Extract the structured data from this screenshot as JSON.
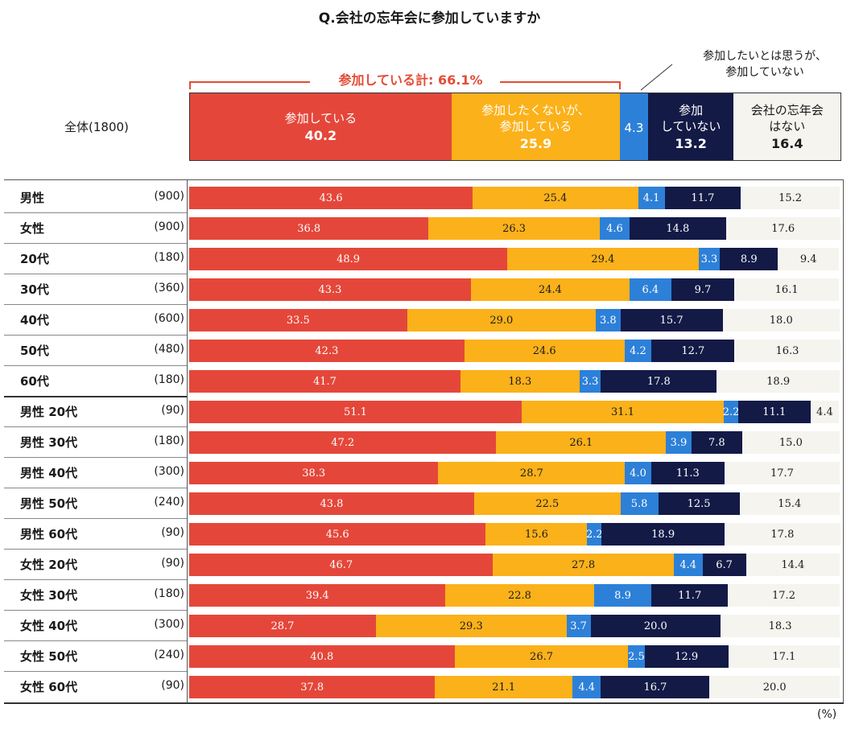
{
  "title": "Q.会社の忘年会に参加していますか",
  "unit_note": "(%)",
  "colors": {
    "attend": "#e4473a",
    "reluctant": "#fbb11a",
    "want_but_not": "#2d80d8",
    "not_attend": "#131a46",
    "no_party": "#f5f4ef",
    "bracket": "#e24d35"
  },
  "bracket_label": "参加している計: 66.1%",
  "annotation": "参加したいとは思うが、\n参加していない",
  "total": {
    "label": "全体(1800)",
    "segments": [
      {
        "label": "参加している",
        "value": 40.2
      },
      {
        "label": "参加したくないが、\n参加している",
        "value": 25.9
      },
      {
        "label": "",
        "value": 4.3
      },
      {
        "label": "参加\nしていない",
        "value": 13.2
      },
      {
        "label": "会社の忘年会\nはない",
        "value": 16.4
      }
    ]
  },
  "chart_data": {
    "type": "bar",
    "orientation": "horizontal-stacked-100",
    "series_names": [
      "参加している",
      "参加したくないが、参加している",
      "参加したいとは思うが、参加していない",
      "参加していない",
      "会社の忘年会はない"
    ],
    "rows": [
      {
        "label": "男性",
        "n": "(900)",
        "values": [
          43.6,
          25.4,
          4.1,
          11.7,
          15.2
        ]
      },
      {
        "label": "女性",
        "n": "(900)",
        "values": [
          36.8,
          26.3,
          4.6,
          14.8,
          17.6
        ]
      },
      {
        "label": "20代",
        "n": "(180)",
        "values": [
          48.9,
          29.4,
          3.3,
          8.9,
          9.4
        ]
      },
      {
        "label": "30代",
        "n": "(360)",
        "values": [
          43.3,
          24.4,
          6.4,
          9.7,
          16.1
        ]
      },
      {
        "label": "40代",
        "n": "(600)",
        "values": [
          33.5,
          29.0,
          3.8,
          15.7,
          18.0
        ]
      },
      {
        "label": "50代",
        "n": "(480)",
        "values": [
          42.3,
          24.6,
          4.2,
          12.7,
          16.3
        ]
      },
      {
        "label": "60代",
        "n": "(180)",
        "values": [
          41.7,
          18.3,
          3.3,
          17.8,
          18.9
        ]
      },
      {
        "label": "男性 20代",
        "n": "(90)",
        "values": [
          51.1,
          31.1,
          2.2,
          11.1,
          4.4
        ]
      },
      {
        "label": "男性 30代",
        "n": "(180)",
        "values": [
          47.2,
          26.1,
          3.9,
          7.8,
          15.0
        ]
      },
      {
        "label": "男性 40代",
        "n": "(300)",
        "values": [
          38.3,
          28.7,
          4.0,
          11.3,
          17.7
        ]
      },
      {
        "label": "男性 50代",
        "n": "(240)",
        "values": [
          43.8,
          22.5,
          5.8,
          12.5,
          15.4
        ]
      },
      {
        "label": "男性 60代",
        "n": "(90)",
        "values": [
          45.6,
          15.6,
          2.2,
          18.9,
          17.8
        ]
      },
      {
        "label": "女性 20代",
        "n": "(90)",
        "values": [
          46.7,
          27.8,
          4.4,
          6.7,
          14.4
        ]
      },
      {
        "label": "女性 30代",
        "n": "(180)",
        "values": [
          39.4,
          22.8,
          8.9,
          11.7,
          17.2
        ]
      },
      {
        "label": "女性 40代",
        "n": "(300)",
        "values": [
          28.7,
          29.3,
          3.7,
          20.0,
          18.3
        ]
      },
      {
        "label": "女性 50代",
        "n": "(240)",
        "values": [
          40.8,
          26.7,
          2.5,
          12.9,
          17.1
        ]
      },
      {
        "label": "女性 60代",
        "n": "(90)",
        "values": [
          37.8,
          21.1,
          4.4,
          16.7,
          20.0
        ]
      }
    ]
  }
}
